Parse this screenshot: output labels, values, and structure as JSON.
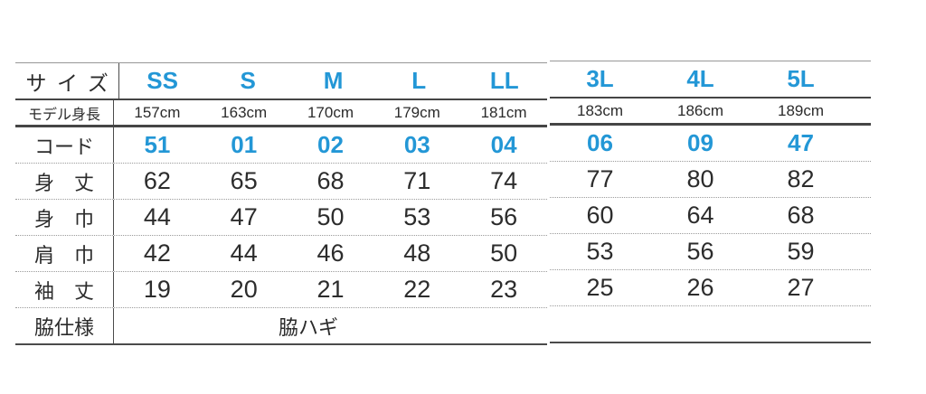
{
  "accent_color": "#2397d6",
  "table": {
    "size_row": {
      "label": "サイズ",
      "left": [
        "SS",
        "S",
        "M",
        "L",
        "LL"
      ],
      "right": [
        "3L",
        "4L",
        "5L"
      ]
    },
    "model_row": {
      "label": "モデル身長",
      "left": [
        "157cm",
        "163cm",
        "170cm",
        "179cm",
        "181cm"
      ],
      "right": [
        "183cm",
        "186cm",
        "189cm"
      ]
    },
    "code_row": {
      "label": "コード",
      "left": [
        "51",
        "01",
        "02",
        "03",
        "04"
      ],
      "right": [
        "06",
        "09",
        "47"
      ]
    },
    "measure_rows": [
      {
        "label": "身　丈",
        "left": [
          "62",
          "65",
          "68",
          "71",
          "74"
        ],
        "right": [
          "77",
          "80",
          "82"
        ]
      },
      {
        "label": "身　巾",
        "left": [
          "44",
          "47",
          "50",
          "53",
          "56"
        ],
        "right": [
          "60",
          "64",
          "68"
        ]
      },
      {
        "label": "肩　巾",
        "left": [
          "42",
          "44",
          "46",
          "48",
          "50"
        ],
        "right": [
          "53",
          "56",
          "59"
        ]
      },
      {
        "label": "袖　丈",
        "left": [
          "19",
          "20",
          "21",
          "22",
          "23"
        ],
        "right": [
          "25",
          "26",
          "27"
        ]
      }
    ],
    "side_row": {
      "label": "脇仕様",
      "value": "脇ハギ"
    }
  }
}
